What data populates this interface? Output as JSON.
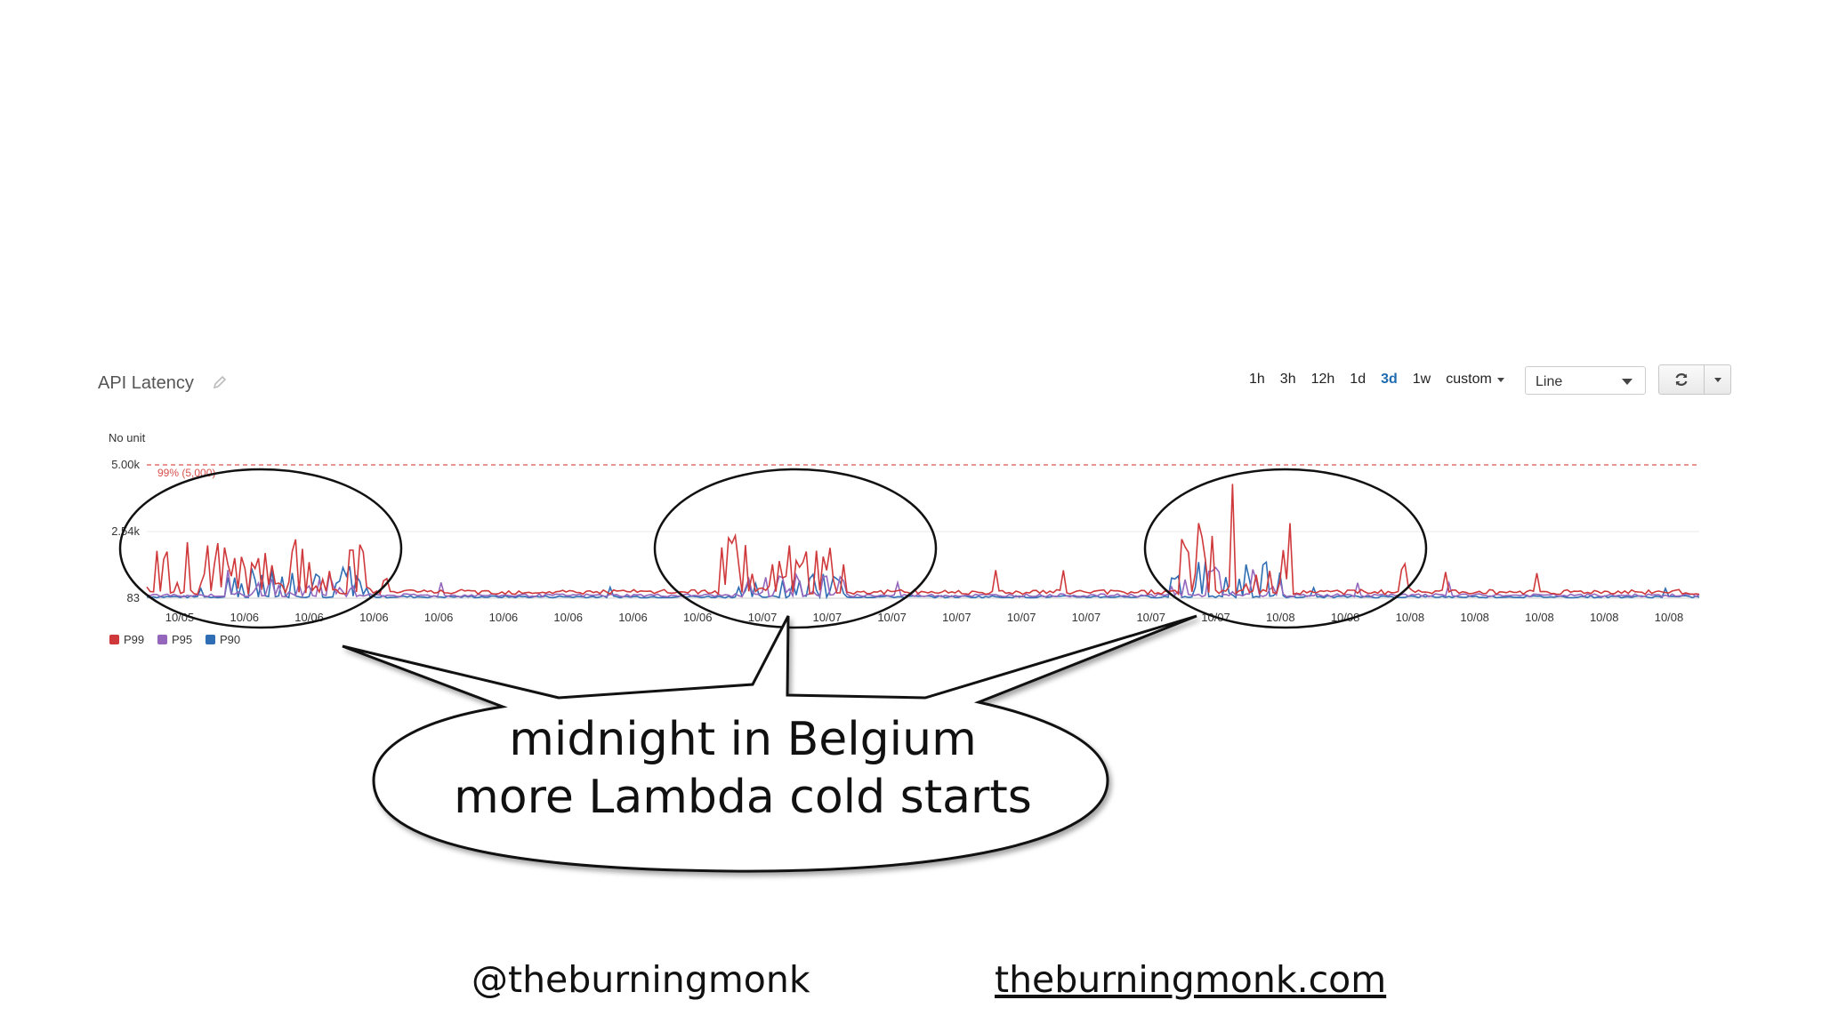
{
  "widget": {
    "title": "API Latency",
    "time_ranges": [
      "1h",
      "3h",
      "12h",
      "1d",
      "3d",
      "1w"
    ],
    "active_range": "3d",
    "custom_label": "custom",
    "view_type": "Line"
  },
  "chart_data": {
    "type": "line",
    "unit_label": "No unit",
    "ylim": [
      83,
      5000
    ],
    "y_ticks": [
      "5.00k",
      "2.54k",
      "83"
    ],
    "threshold": {
      "label": "99% (5,000)",
      "value": 5000,
      "color": "#d9534f"
    },
    "x_ticks": [
      "10/05",
      "10/06",
      "10/06",
      "10/06",
      "10/06",
      "10/06",
      "10/06",
      "10/06",
      "10/06",
      "10/07",
      "10/07",
      "10/07",
      "10/07",
      "10/07",
      "10/07",
      "10/07",
      "10/07",
      "10/08",
      "10/08",
      "10/08",
      "10/08",
      "10/08",
      "10/08",
      "10/08"
    ],
    "legend_position": "bottom-left",
    "series": [
      {
        "name": "P99",
        "color": "#d0393b",
        "baseline": 300,
        "spikes": [
          {
            "from": 0.0,
            "to": 0.16,
            "amp": 1900
          },
          {
            "from": 0.37,
            "to": 0.45,
            "amp": 2100
          },
          {
            "from": 0.66,
            "to": 0.74,
            "amp": 2600
          },
          {
            "from": 0.81,
            "to": 0.82,
            "amp": 1700
          }
        ],
        "peak": {
          "at": 0.7,
          "value": 4300
        }
      },
      {
        "name": "P95",
        "color": "#9467bd",
        "baseline": 180,
        "spikes": [
          {
            "from": 0.05,
            "to": 0.14,
            "amp": 900
          },
          {
            "from": 0.38,
            "to": 0.45,
            "amp": 800
          },
          {
            "from": 0.66,
            "to": 0.73,
            "amp": 1100
          }
        ]
      },
      {
        "name": "P90",
        "color": "#2f6db4",
        "baseline": 130,
        "spikes": [
          {
            "from": 0.05,
            "to": 0.14,
            "amp": 1100
          },
          {
            "from": 0.38,
            "to": 0.45,
            "amp": 900
          },
          {
            "from": 0.66,
            "to": 0.74,
            "amp": 1400
          }
        ]
      }
    ]
  },
  "callout": {
    "line1": "midnight in Belgium",
    "line2": "more Lambda cold starts"
  },
  "footer": {
    "handle": "@theburningmonk",
    "website": "theburningmonk.com"
  }
}
